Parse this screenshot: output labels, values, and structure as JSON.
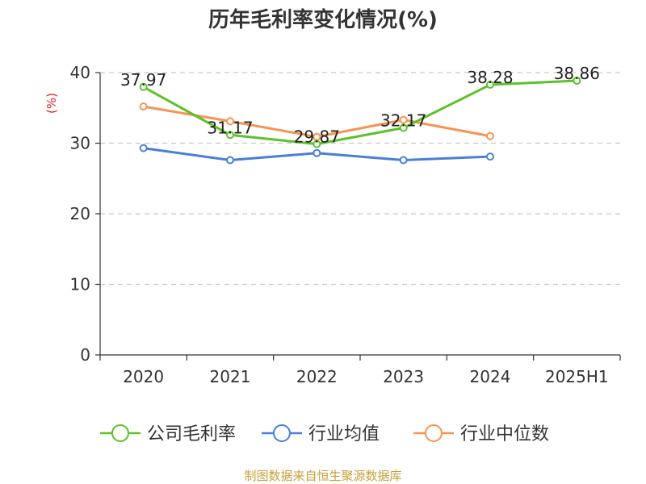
{
  "chart_data": {
    "type": "line",
    "title": "历年毛利率变化情况(%)",
    "ylabel": "(%)",
    "xlabel": "",
    "categories": [
      "2020",
      "2021",
      "2022",
      "2023",
      "2024",
      "2025H1"
    ],
    "ylim": [
      0,
      40
    ],
    "yticks": [
      0,
      10,
      20,
      30,
      40
    ],
    "grid": true,
    "legend_position": "bottom",
    "series": [
      {
        "name": "公司毛利率",
        "color": "#5cc12b",
        "values": [
          37.97,
          31.17,
          29.87,
          32.17,
          38.28,
          38.86
        ],
        "show_labels": true
      },
      {
        "name": "行业均值",
        "color": "#4a7fd8",
        "values": [
          29.3,
          27.6,
          28.6,
          27.6,
          28.1,
          null
        ],
        "show_labels": false
      },
      {
        "name": "行业中位数",
        "color": "#f79354",
        "values": [
          35.2,
          33.1,
          30.9,
          33.3,
          31.0,
          null
        ],
        "show_labels": false
      }
    ],
    "data_labels": [
      "37.97",
      "31.17",
      "29.87",
      "32.17",
      "38.28",
      "38.86"
    ]
  },
  "source_text": "制图数据来自恒生聚源数据库"
}
